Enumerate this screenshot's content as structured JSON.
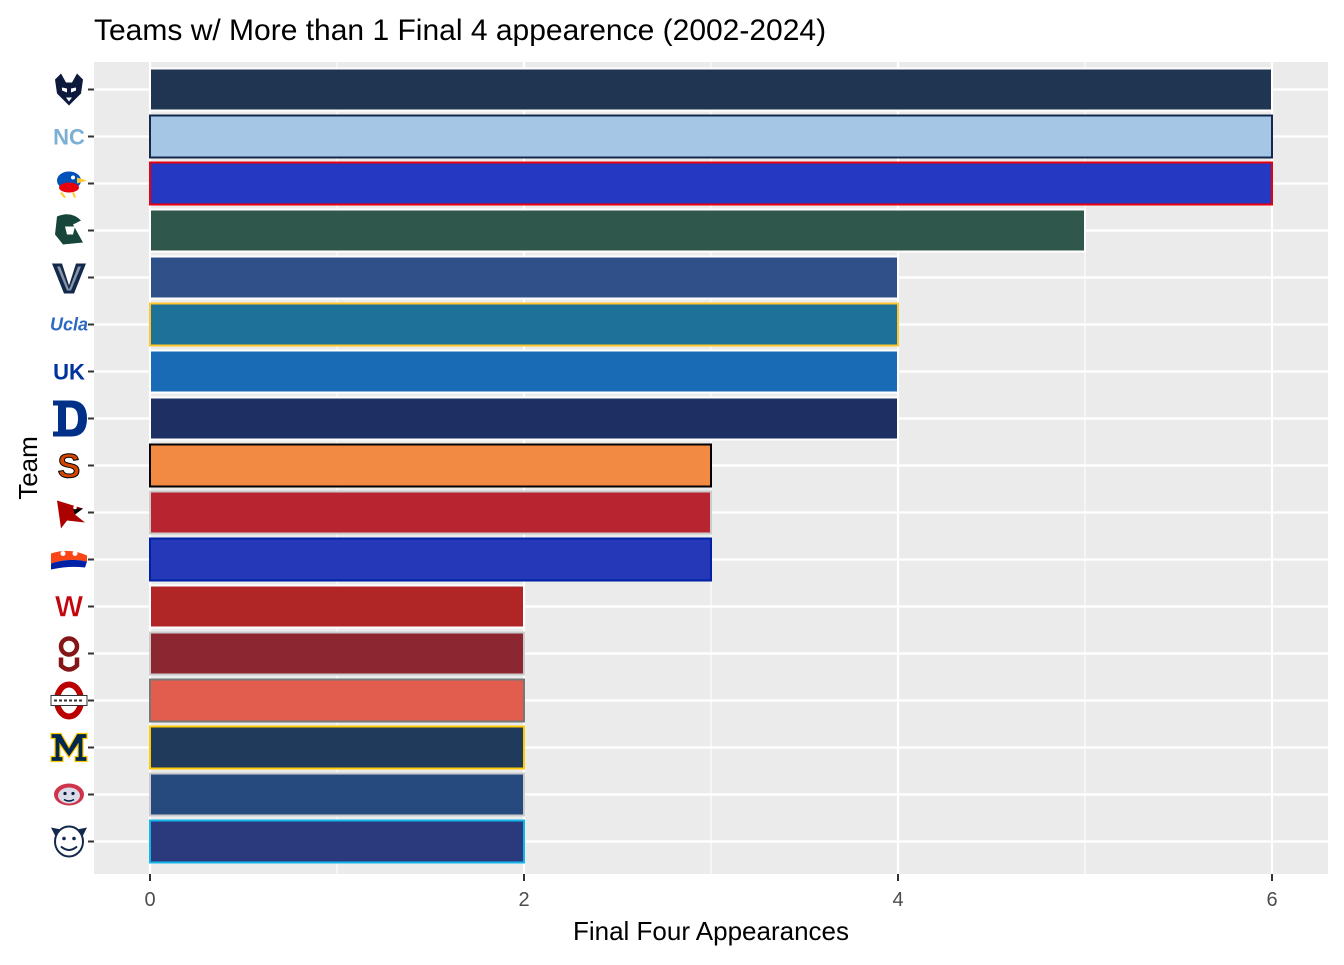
{
  "chart_data": {
    "type": "bar",
    "orientation": "horizontal",
    "title": "Teams w/ More than 1 Final 4 appearence (2002-2024)",
    "xlabel": "Final Four Appearances",
    "ylabel": "Team",
    "xlim": [
      0,
      6
    ],
    "x_ticks": [
      0,
      2,
      4,
      6
    ],
    "x_tick_labels": [
      "0",
      "2",
      "4",
      "6"
    ],
    "grid": true,
    "legend": "none",
    "panel_background": "#ebebeb",
    "bars": [
      {
        "logo": "uconn-husky-logo-icon",
        "value": 6,
        "fill": "#1f3552",
        "outline": "#ffffff",
        "logo_color": "#0e1a3c"
      },
      {
        "logo": "unc-interlocking-nc-logo-icon",
        "value": 6,
        "fill": "#a6c6e6",
        "outline": "#13294b",
        "logo_color": "#7bafd4"
      },
      {
        "logo": "kansas-jayhawk-logo-icon",
        "value": 6,
        "fill": "#2438c2",
        "outline": "#e8000d",
        "logo_color": "#0051ba"
      },
      {
        "logo": "michigan-state-spartan-logo-icon",
        "value": 5,
        "fill": "#30574b",
        "outline": "#ffffff",
        "logo_color": "#18453b"
      },
      {
        "logo": "villanova-v-logo-icon",
        "value": 4,
        "fill": "#2f5088",
        "outline": "#ffffff",
        "logo_color": "#13b5ea"
      },
      {
        "logo": "ucla-script-logo-icon",
        "value": 4,
        "fill": "#1e7199",
        "outline": "#ffc72c",
        "logo_color": "#2d68c4"
      },
      {
        "logo": "kentucky-uk-logo-icon",
        "value": 4,
        "fill": "#1a6bb5",
        "outline": "#ffffff",
        "logo_color": "#0033a0"
      },
      {
        "logo": "duke-d-logo-icon",
        "value": 4,
        "fill": "#1d2f63",
        "outline": "#ffffff",
        "logo_color": "#003087"
      },
      {
        "logo": "syracuse-s-logo-icon",
        "value": 3,
        "fill": "#f28a43",
        "outline": "#000000",
        "logo_color": "#d44500"
      },
      {
        "logo": "louisville-cardinal-logo-icon",
        "value": 3,
        "fill": "#b8242f",
        "outline": "#cccccc",
        "logo_color": "#ad0000"
      },
      {
        "logo": "florida-gator-logo-icon",
        "value": 3,
        "fill": "#2438b8",
        "outline": "#0021a5",
        "logo_color": "#0021a5"
      },
      {
        "logo": "wisconsin-w-logo-icon",
        "value": 2,
        "fill": "#b02526",
        "outline": "#ffffff",
        "logo_color": "#c5050c"
      },
      {
        "logo": "oklahoma-ou-logo-icon",
        "value": 2,
        "fill": "#8c2731",
        "outline": "#cccccc",
        "logo_color": "#841617"
      },
      {
        "logo": "ohio-state-logo-icon",
        "value": 2,
        "fill": "#e35d4e",
        "outline": "#777777",
        "logo_color": "#bb0000"
      },
      {
        "logo": "michigan-block-m-logo-icon",
        "value": 2,
        "fill": "#1f3a5a",
        "outline": "#ffcb05",
        "logo_color": "#00274c"
      },
      {
        "logo": "gonzaga-bulldog-logo-icon",
        "value": 2,
        "fill": "#264a7e",
        "outline": "#cccccc",
        "logo_color": "#041e42"
      },
      {
        "logo": "butler-bulldog-logo-icon",
        "value": 2,
        "fill": "#2a3a7c",
        "outline": "#13b5ea",
        "logo_color": "#13294b"
      }
    ]
  }
}
